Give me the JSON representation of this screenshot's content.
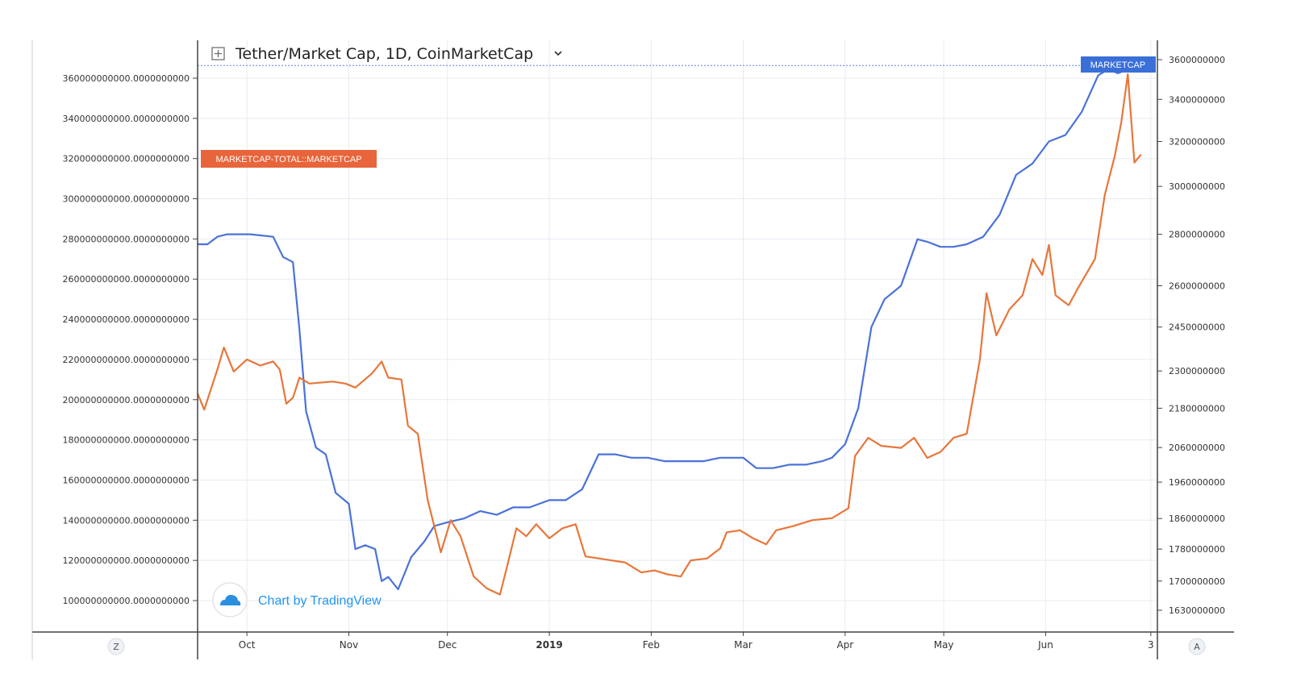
{
  "chart_data": {
    "type": "line",
    "title": "Tether/Market Cap, 1D, CoinMarketCap",
    "x_ticks": [
      "Oct",
      "Nov",
      "Dec",
      "2019",
      "Feb",
      "Mar",
      "Apr",
      "May",
      "Jun",
      "3"
    ],
    "left_axis": {
      "ticks": [
        {
          "value": 100000000000,
          "label": "100000000000.0000000000"
        },
        {
          "value": 120000000000,
          "label": "120000000000.0000000000"
        },
        {
          "value": 140000000000,
          "label": "140000000000.0000000000"
        },
        {
          "value": 160000000000,
          "label": "160000000000.0000000000"
        },
        {
          "value": 180000000000,
          "label": "180000000000.0000000000"
        },
        {
          "value": 200000000000,
          "label": "200000000000.0000000000"
        },
        {
          "value": 220000000000,
          "label": "220000000000.0000000000"
        },
        {
          "value": 240000000000,
          "label": "240000000000.0000000000"
        },
        {
          "value": 260000000000,
          "label": "260000000000.0000000000"
        },
        {
          "value": 280000000000,
          "label": "280000000000.0000000000"
        },
        {
          "value": 300000000000,
          "label": "300000000000.0000000000"
        },
        {
          "value": 320000000000,
          "label": "320000000000.0000000000"
        },
        {
          "value": 340000000000,
          "label": "340000000000.0000000000"
        },
        {
          "value": 360000000000,
          "label": "360000000000.0000000000"
        }
      ]
    },
    "right_axis": {
      "scale": "log",
      "ticks": [
        {
          "value": 1630000000,
          "label": "1630000000"
        },
        {
          "value": 1700000000,
          "label": "1700000000"
        },
        {
          "value": 1780000000,
          "label": "1780000000"
        },
        {
          "value": 1860000000,
          "label": "1860000000"
        },
        {
          "value": 1960000000,
          "label": "1960000000"
        },
        {
          "value": 2060000000,
          "label": "2060000000"
        },
        {
          "value": 2180000000,
          "label": "2180000000"
        },
        {
          "value": 2300000000,
          "label": "2300000000"
        },
        {
          "value": 2450000000,
          "label": "2450000000"
        },
        {
          "value": 2600000000,
          "label": "2600000000"
        },
        {
          "value": 2800000000,
          "label": "2800000000"
        },
        {
          "value": 3000000000,
          "label": "3000000000"
        },
        {
          "value": 3200000000,
          "label": "3200000000"
        },
        {
          "value": 3400000000,
          "label": "3400000000"
        },
        {
          "value": 3600000000,
          "label": "3600000000"
        }
      ]
    },
    "series": [
      {
        "name": "MARKETCAP",
        "axis": "right",
        "color": "#4a72d9",
        "points": [
          [
            "2018-09-16",
            2760000000
          ],
          [
            "2018-09-19",
            2760000000
          ],
          [
            "2018-09-22",
            2790000000
          ],
          [
            "2018-09-25",
            2800000000
          ],
          [
            "2018-10-02",
            2800000000
          ],
          [
            "2018-10-09",
            2790000000
          ],
          [
            "2018-10-12",
            2710000000
          ],
          [
            "2018-10-15",
            2690000000
          ],
          [
            "2018-10-17",
            2440000000
          ],
          [
            "2018-10-19",
            2170000000
          ],
          [
            "2018-10-22",
            2060000000
          ],
          [
            "2018-10-25",
            2040000000
          ],
          [
            "2018-10-28",
            1930000000
          ],
          [
            "2018-11-01",
            1900000000
          ],
          [
            "2018-11-03",
            1780000000
          ],
          [
            "2018-11-06",
            1790000000
          ],
          [
            "2018-11-09",
            1780000000
          ],
          [
            "2018-11-11",
            1700000000
          ],
          [
            "2018-11-13",
            1710000000
          ],
          [
            "2018-11-16",
            1680000000
          ],
          [
            "2018-11-20",
            1760000000
          ],
          [
            "2018-11-24",
            1800000000
          ],
          [
            "2018-11-27",
            1840000000
          ],
          [
            "2018-12-01",
            1850000000
          ],
          [
            "2018-12-06",
            1860000000
          ],
          [
            "2018-12-11",
            1880000000
          ],
          [
            "2018-12-16",
            1870000000
          ],
          [
            "2018-12-21",
            1890000000
          ],
          [
            "2018-12-26",
            1890000000
          ],
          [
            "2019-01-01",
            1910000000
          ],
          [
            "2019-01-06",
            1910000000
          ],
          [
            "2019-01-11",
            1940000000
          ],
          [
            "2019-01-16",
            2040000000
          ],
          [
            "2019-01-21",
            2040000000
          ],
          [
            "2019-01-26",
            2030000000
          ],
          [
            "2019-01-31",
            2030000000
          ],
          [
            "2019-02-05",
            2020000000
          ],
          [
            "2019-02-10",
            2020000000
          ],
          [
            "2019-02-17",
            2020000000
          ],
          [
            "2019-02-22",
            2030000000
          ],
          [
            "2019-03-01",
            2030000000
          ],
          [
            "2019-03-05",
            2000000000
          ],
          [
            "2019-03-10",
            2000000000
          ],
          [
            "2019-03-15",
            2010000000
          ],
          [
            "2019-03-20",
            2010000000
          ],
          [
            "2019-03-25",
            2020000000
          ],
          [
            "2019-03-28",
            2030000000
          ],
          [
            "2019-04-01",
            2070000000
          ],
          [
            "2019-04-05",
            2180000000
          ],
          [
            "2019-04-09",
            2450000000
          ],
          [
            "2019-04-13",
            2550000000
          ],
          [
            "2019-04-18",
            2600000000
          ],
          [
            "2019-04-23",
            2780000000
          ],
          [
            "2019-04-26",
            2770000000
          ],
          [
            "2019-04-30",
            2750000000
          ],
          [
            "2019-05-04",
            2750000000
          ],
          [
            "2019-05-08",
            2760000000
          ],
          [
            "2019-05-13",
            2790000000
          ],
          [
            "2019-05-18",
            2880000000
          ],
          [
            "2019-05-23",
            3050000000
          ],
          [
            "2019-05-28",
            3100000000
          ],
          [
            "2019-06-02",
            3200000000
          ],
          [
            "2019-06-07",
            3230000000
          ],
          [
            "2019-06-12",
            3340000000
          ],
          [
            "2019-06-17",
            3520000000
          ],
          [
            "2019-06-20",
            3550000000
          ],
          [
            "2019-06-23",
            3530000000
          ],
          [
            "2019-06-26",
            3550000000
          ],
          [
            "2019-06-29",
            3570000000
          ],
          [
            "2019-07-02",
            3570000000
          ]
        ]
      },
      {
        "name": "MARKETCAP-TOTAL::MARKETCAP",
        "axis": "left",
        "color": "#e8763a",
        "points": [
          [
            "2018-09-16",
            203000000000
          ],
          [
            "2018-09-18",
            195000000000
          ],
          [
            "2018-09-22",
            215000000000
          ],
          [
            "2018-09-24",
            226000000000
          ],
          [
            "2018-09-27",
            214000000000
          ],
          [
            "2018-10-01",
            220000000000
          ],
          [
            "2018-10-05",
            217000000000
          ],
          [
            "2018-10-09",
            219000000000
          ],
          [
            "2018-10-11",
            215000000000
          ],
          [
            "2018-10-13",
            198000000000
          ],
          [
            "2018-10-15",
            201000000000
          ],
          [
            "2018-10-17",
            211000000000
          ],
          [
            "2018-10-20",
            208000000000
          ],
          [
            "2018-10-27",
            209000000000
          ],
          [
            "2018-10-31",
            208000000000
          ],
          [
            "2018-11-03",
            206000000000
          ],
          [
            "2018-11-08",
            213000000000
          ],
          [
            "2018-11-11",
            219000000000
          ],
          [
            "2018-11-13",
            211000000000
          ],
          [
            "2018-11-17",
            210000000000
          ],
          [
            "2018-11-19",
            187000000000
          ],
          [
            "2018-11-22",
            183000000000
          ],
          [
            "2018-11-25",
            150000000000
          ],
          [
            "2018-11-29",
            124000000000
          ],
          [
            "2018-12-02",
            140000000000
          ],
          [
            "2018-12-05",
            132000000000
          ],
          [
            "2018-12-09",
            112000000000
          ],
          [
            "2018-12-13",
            106000000000
          ],
          [
            "2018-12-17",
            103000000000
          ],
          [
            "2018-12-19",
            116000000000
          ],
          [
            "2018-12-22",
            136000000000
          ],
          [
            "2018-12-25",
            132000000000
          ],
          [
            "2018-12-28",
            138000000000
          ],
          [
            "2019-01-01",
            131000000000
          ],
          [
            "2019-01-05",
            136000000000
          ],
          [
            "2019-01-09",
            138000000000
          ],
          [
            "2019-01-12",
            122000000000
          ],
          [
            "2019-01-16",
            121000000000
          ],
          [
            "2019-01-20",
            120000000000
          ],
          [
            "2019-01-24",
            119000000000
          ],
          [
            "2019-01-29",
            114000000000
          ],
          [
            "2019-02-02",
            115000000000
          ],
          [
            "2019-02-06",
            113000000000
          ],
          [
            "2019-02-10",
            112000000000
          ],
          [
            "2019-02-13",
            120000000000
          ],
          [
            "2019-02-18",
            121000000000
          ],
          [
            "2019-02-22",
            126000000000
          ],
          [
            "2019-02-24",
            134000000000
          ],
          [
            "2019-02-28",
            135000000000
          ],
          [
            "2019-03-04",
            131000000000
          ],
          [
            "2019-03-08",
            128000000000
          ],
          [
            "2019-03-11",
            135000000000
          ],
          [
            "2019-03-16",
            137000000000
          ],
          [
            "2019-03-22",
            140000000000
          ],
          [
            "2019-03-28",
            141000000000
          ],
          [
            "2019-04-02",
            146000000000
          ],
          [
            "2019-04-04",
            172000000000
          ],
          [
            "2019-04-08",
            181000000000
          ],
          [
            "2019-04-12",
            177000000000
          ],
          [
            "2019-04-18",
            176000000000
          ],
          [
            "2019-04-22",
            181000000000
          ],
          [
            "2019-04-26",
            171000000000
          ],
          [
            "2019-04-30",
            174000000000
          ],
          [
            "2019-05-04",
            181000000000
          ],
          [
            "2019-05-08",
            183000000000
          ],
          [
            "2019-05-12",
            220000000000
          ],
          [
            "2019-05-14",
            253000000000
          ],
          [
            "2019-05-17",
            232000000000
          ],
          [
            "2019-05-21",
            245000000000
          ],
          [
            "2019-05-25",
            252000000000
          ],
          [
            "2019-05-28",
            270000000000
          ],
          [
            "2019-05-31",
            262000000000
          ],
          [
            "2019-06-02",
            277000000000
          ],
          [
            "2019-06-04",
            252000000000
          ],
          [
            "2019-06-08",
            247000000000
          ],
          [
            "2019-06-11",
            256000000000
          ],
          [
            "2019-06-16",
            270000000000
          ],
          [
            "2019-06-19",
            302000000000
          ],
          [
            "2019-06-22",
            321000000000
          ],
          [
            "2019-06-24",
            338000000000
          ],
          [
            "2019-06-26",
            362000000000
          ],
          [
            "2019-06-28",
            318000000000
          ],
          [
            "2019-06-30",
            322000000000
          ]
        ]
      }
    ],
    "legend": "top-left",
    "grid": true
  },
  "header": {
    "title": "Tether/Market Cap, 1D, CoinMarketCap",
    "chevron_icon": "chevron-down-icon"
  },
  "tags": {
    "right_series_label": "MARKETCAP",
    "left_series_label": "MARKETCAP-TOTAL::MARKETCAP"
  },
  "corner_buttons": {
    "left": "Z",
    "right": "A"
  },
  "branding": {
    "text": "Chart by TradingView",
    "icon": "tradingview-cloud-icon"
  },
  "colors": {
    "blue": "#4a72d9",
    "orange": "#e8763a",
    "grid": "#e6ecf2"
  }
}
